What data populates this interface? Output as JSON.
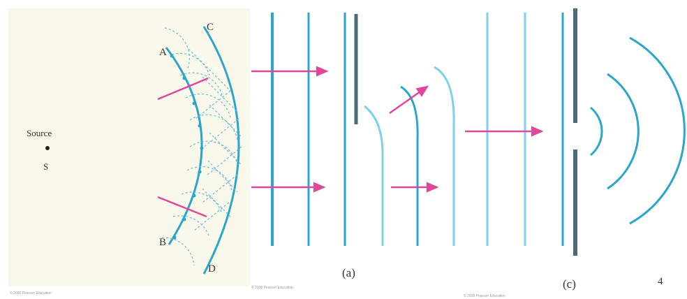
{
  "colors": {
    "panel_bg": "#faf8ea",
    "wave": "#2aa6cc",
    "wave_light": "#7fd0ea",
    "wave_dash": "#64bcd8",
    "barrier": "#4b6a7a",
    "ray": "#e0479a",
    "text": "#333333"
  },
  "huygens": {
    "source_label": "Source",
    "source_symbol": "S",
    "point_a": "A",
    "point_b": "B",
    "point_c": "C",
    "point_d": "D"
  },
  "captions": {
    "panel_a": "(a)",
    "panel_c": "(c)",
    "figure_number": "4"
  },
  "credits": {
    "left": "© 2008 Pearson Education",
    "middle": "© 2008 Pearson Education",
    "right": "© 2008 Pearson Education"
  }
}
